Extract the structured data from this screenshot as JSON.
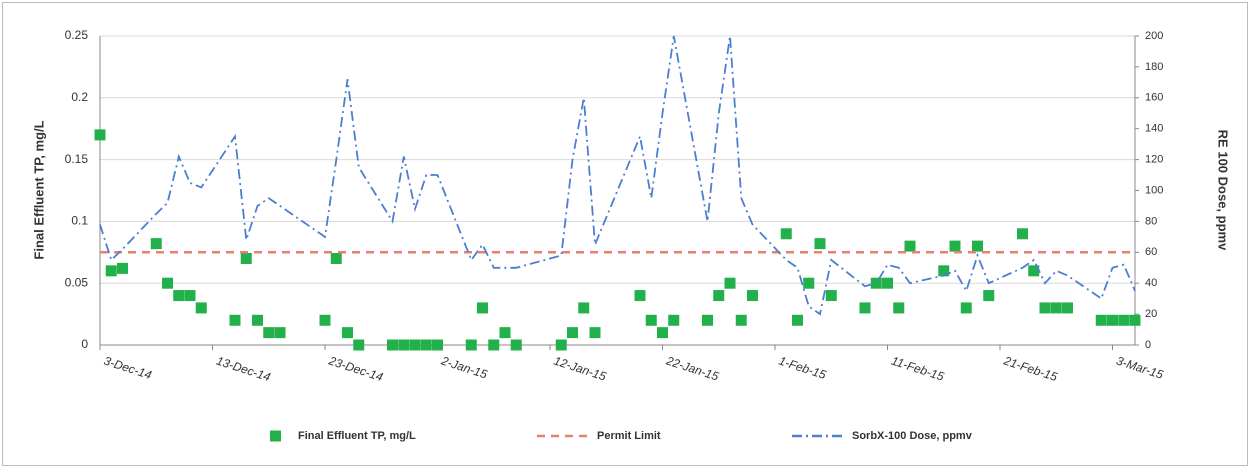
{
  "chart_data": {
    "type": "combo",
    "y_label": "Final Effluent TP, mg/L",
    "y2_label": "RE 100 Dose, ppmv",
    "xlim": [
      "2014-12-03",
      "2015-03-05"
    ],
    "xticks": [
      {
        "value": "2014-12-03",
        "label": "3-Dec-14"
      },
      {
        "value": "2014-12-13",
        "label": "13-Dec-14"
      },
      {
        "value": "2014-12-23",
        "label": "23-Dec-14"
      },
      {
        "value": "2015-01-02",
        "label": "2-Jan-15"
      },
      {
        "value": "2015-01-12",
        "label": "12-Jan-15"
      },
      {
        "value": "2015-01-22",
        "label": "22-Jan-15"
      },
      {
        "value": "2015-02-01",
        "label": "1-Feb-15"
      },
      {
        "value": "2015-02-11",
        "label": "11-Feb-15"
      },
      {
        "value": "2015-02-21",
        "label": "21-Feb-15"
      },
      {
        "value": "2015-03-03",
        "label": "3-Mar-15"
      }
    ],
    "ylim": [
      0,
      0.25
    ],
    "yticks": [
      0,
      0.05,
      0.1,
      0.15,
      0.2,
      0.25
    ],
    "y2lim": [
      0,
      200
    ],
    "y2ticks": [
      0,
      20,
      40,
      60,
      80,
      100,
      120,
      140,
      160,
      180,
      200
    ],
    "grid": true,
    "legend": "bottom",
    "series": [
      {
        "name": "Final Effluent TP, mg/L",
        "type": "scatter",
        "color": "#22b04a",
        "x": [
          "2014-12-03",
          "2014-12-04",
          "2014-12-05",
          "2014-12-08",
          "2014-12-09",
          "2014-12-10",
          "2014-12-11",
          "2014-12-12",
          "2014-12-15",
          "2014-12-16",
          "2014-12-17",
          "2014-12-18",
          "2014-12-19",
          "2014-12-23",
          "2014-12-24",
          "2014-12-25",
          "2014-12-26",
          "2014-12-29",
          "2014-12-30",
          "2014-12-31",
          "2015-01-01",
          "2015-01-02",
          "2015-01-05",
          "2015-01-06",
          "2015-01-07",
          "2015-01-08",
          "2015-01-09",
          "2015-01-13",
          "2015-01-14",
          "2015-01-15",
          "2015-01-16",
          "2015-01-20",
          "2015-01-21",
          "2015-01-22",
          "2015-01-23",
          "2015-01-26",
          "2015-01-27",
          "2015-01-28",
          "2015-01-29",
          "2015-01-30",
          "2015-02-02",
          "2015-02-03",
          "2015-02-04",
          "2015-02-05",
          "2015-02-06",
          "2015-02-09",
          "2015-02-10",
          "2015-02-11",
          "2015-02-12",
          "2015-02-13",
          "2015-02-16",
          "2015-02-17",
          "2015-02-18",
          "2015-02-19",
          "2015-02-20",
          "2015-02-23",
          "2015-02-24",
          "2015-02-25",
          "2015-02-26",
          "2015-02-27",
          "2015-03-02",
          "2015-03-03",
          "2015-03-04",
          "2015-03-05"
        ],
        "values": [
          0.17,
          0.06,
          0.062,
          0.082,
          0.05,
          0.04,
          0.04,
          0.03,
          0.02,
          0.07,
          0.02,
          0.01,
          0.01,
          0.02,
          0.07,
          0.01,
          0,
          0,
          0,
          0,
          0,
          0,
          0,
          0.03,
          0,
          0.01,
          0,
          0,
          0.01,
          0.03,
          0.01,
          0.04,
          0.02,
          0.01,
          0.02,
          0.02,
          0.04,
          0.05,
          0.02,
          0.04,
          0.09,
          0.02,
          0.05,
          0.082,
          0.04,
          0.03,
          0.05,
          0.05,
          0.03,
          0.08,
          0.06,
          0.08,
          0.03,
          0.08,
          0.04,
          0.09,
          0.06,
          0.03,
          0.03,
          0.03,
          0.02,
          0.02,
          0.02,
          0.02
        ]
      },
      {
        "name": "Permit Limit",
        "type": "line",
        "color": "#e8806c",
        "dash": "dashed",
        "x": [
          "2014-12-03",
          "2015-03-05"
        ],
        "values": [
          0.075,
          0.075
        ]
      },
      {
        "name": "SorbX-100 Dose, ppmv",
        "type": "line",
        "color": "#4a7fd0",
        "dash": "dashdot",
        "axis": "y2",
        "x": [
          "2014-12-03",
          "2014-12-04",
          "2014-12-05",
          "2014-12-08",
          "2014-12-09",
          "2014-12-10",
          "2014-12-11",
          "2014-12-12",
          "2014-12-15",
          "2014-12-16",
          "2014-12-17",
          "2014-12-18",
          "2014-12-23",
          "2014-12-24",
          "2014-12-25",
          "2014-12-26",
          "2014-12-29",
          "2014-12-30",
          "2014-12-31",
          "2015-01-01",
          "2015-01-02",
          "2015-01-05",
          "2015-01-06",
          "2015-01-07",
          "2015-01-08",
          "2015-01-09",
          "2015-01-13",
          "2015-01-14",
          "2015-01-15",
          "2015-01-16",
          "2015-01-20",
          "2015-01-21",
          "2015-01-22",
          "2015-01-23",
          "2015-01-26",
          "2015-01-27",
          "2015-01-28",
          "2015-01-29",
          "2015-01-30",
          "2015-02-02",
          "2015-02-03",
          "2015-02-04",
          "2015-02-05",
          "2015-02-06",
          "2015-02-09",
          "2015-02-10",
          "2015-02-11",
          "2015-02-12",
          "2015-02-13",
          "2015-02-16",
          "2015-02-17",
          "2015-02-18",
          "2015-02-19",
          "2015-02-20",
          "2015-02-23",
          "2015-02-24",
          "2015-02-25",
          "2015-02-26",
          "2015-02-27",
          "2015-03-02",
          "2015-03-03",
          "2015-03-04",
          "2015-03-05"
        ],
        "values": [
          78,
          55,
          62,
          85,
          92,
          122,
          105,
          102,
          135,
          68,
          90,
          95,
          70,
          120,
          172,
          115,
          80,
          122,
          88,
          110,
          110,
          55,
          65,
          50,
          50,
          50,
          58,
          120,
          160,
          65,
          135,
          95,
          150,
          200,
          80,
          150,
          200,
          95,
          78,
          55,
          50,
          25,
          20,
          55,
          38,
          40,
          52,
          50,
          40,
          45,
          48,
          35,
          58,
          40,
          50,
          55,
          40,
          48,
          45,
          30,
          50,
          52,
          35
        ]
      }
    ]
  }
}
